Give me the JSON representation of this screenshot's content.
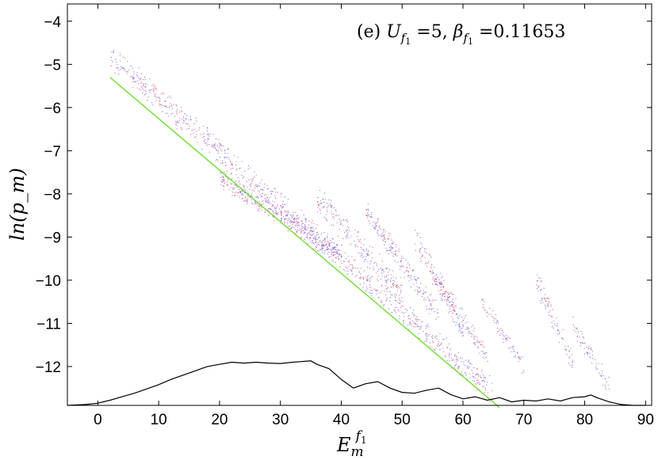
{
  "chart_data": {
    "type": "scatter",
    "title": "",
    "annotation": "(e) U_{f1} =5, β_{f1} =0.11653",
    "annotation_parts": {
      "panel": "(e) ",
      "u_sym": "U",
      "u_sub": "f",
      "u_subsub": "1",
      "u_val": " =5, ",
      "b_sym": "β",
      "b_sub": "f",
      "b_subsub": "1",
      "b_val": " =0.11653"
    },
    "xlabel": "E_m^{f1}",
    "xlabel_parts": {
      "base": "E",
      "sub": "m",
      "sup": "f",
      "supsub": "1"
    },
    "ylabel": "ln(p_m)",
    "xlim": [
      -5,
      91
    ],
    "ylim": [
      -12.9,
      -3.6
    ],
    "xticks": [
      0,
      10,
      20,
      30,
      40,
      50,
      60,
      70,
      80,
      90
    ],
    "yticks": [
      -4,
      -5,
      -6,
      -7,
      -8,
      -9,
      -10,
      -11,
      -12
    ],
    "grid": false,
    "fit_line": {
      "x": [
        2,
        66
      ],
      "y": [
        -5.3,
        -12.95
      ],
      "color": "#66dd22"
    },
    "scatter_colors": [
      "#3344dd",
      "#dd3344",
      "#aa44cc"
    ],
    "scatter_bands": [
      {
        "x": [
          2,
          65
        ],
        "y": [
          -4.8,
          -12.6
        ],
        "spread": 0.35,
        "count": 900
      },
      {
        "x": [
          20,
          40
        ],
        "y": [
          -7.6,
          -9.4
        ],
        "spread": 0.3,
        "count": 400
      },
      {
        "x": [
          36,
          50
        ],
        "y": [
          -8.1,
          -10.3
        ],
        "spread": 0.35,
        "count": 220
      },
      {
        "x": [
          44,
          56
        ],
        "y": [
          -8.4,
          -10.8
        ],
        "spread": 0.3,
        "count": 200
      },
      {
        "x": [
          52,
          60
        ],
        "y": [
          -9.0,
          -11.2
        ],
        "spread": 0.3,
        "count": 150
      },
      {
        "x": [
          56,
          64
        ],
        "y": [
          -10.0,
          -11.8
        ],
        "spread": 0.25,
        "count": 110
      },
      {
        "x": [
          63,
          70
        ],
        "y": [
          -10.5,
          -12.0
        ],
        "spread": 0.25,
        "count": 80
      },
      {
        "x": [
          72,
          78
        ],
        "y": [
          -10.0,
          -11.9
        ],
        "spread": 0.3,
        "count": 90
      },
      {
        "x": [
          78,
          84
        ],
        "y": [
          -11.0,
          -12.5
        ],
        "spread": 0.3,
        "count": 70
      }
    ],
    "series": [
      {
        "color": "#000000",
        "x": [
          -5,
          -2,
          0,
          2,
          4,
          6,
          8,
          10,
          12,
          14,
          16,
          18,
          20,
          22,
          24,
          26,
          28,
          30,
          32,
          34,
          35,
          36,
          38,
          40,
          42,
          44,
          46,
          48,
          50,
          52,
          54,
          56,
          58,
          60,
          62,
          64,
          66,
          68,
          70,
          72,
          74,
          76,
          78,
          80,
          81,
          82,
          84,
          86,
          88,
          90
        ],
        "y": [
          -12.9,
          -12.88,
          -12.85,
          -12.78,
          -12.7,
          -12.62,
          -12.52,
          -12.42,
          -12.3,
          -12.2,
          -12.1,
          -12.0,
          -11.95,
          -11.9,
          -11.92,
          -11.9,
          -11.92,
          -11.93,
          -11.9,
          -11.88,
          -11.87,
          -11.95,
          -12.05,
          -12.3,
          -12.5,
          -12.4,
          -12.35,
          -12.5,
          -12.6,
          -12.62,
          -12.55,
          -12.5,
          -12.65,
          -12.75,
          -12.7,
          -12.78,
          -12.72,
          -12.82,
          -12.78,
          -12.8,
          -12.75,
          -12.8,
          -12.72,
          -12.7,
          -12.66,
          -12.72,
          -12.82,
          -12.88,
          -12.9,
          -12.9
        ]
      }
    ]
  }
}
